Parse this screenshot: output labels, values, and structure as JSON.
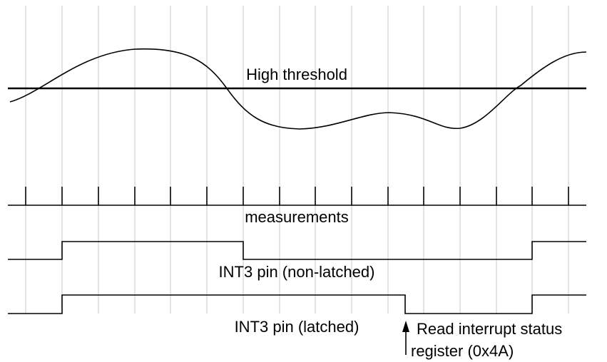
{
  "labels": {
    "high_threshold": "High threshold",
    "measurements": "measurements",
    "int3_non_latched": "INT3 pin (non-latched)",
    "int3_latched": "INT3 pin (latched)",
    "read_status_line1": "Read interrupt status",
    "read_status_line2": "register (0x4A)"
  }
}
